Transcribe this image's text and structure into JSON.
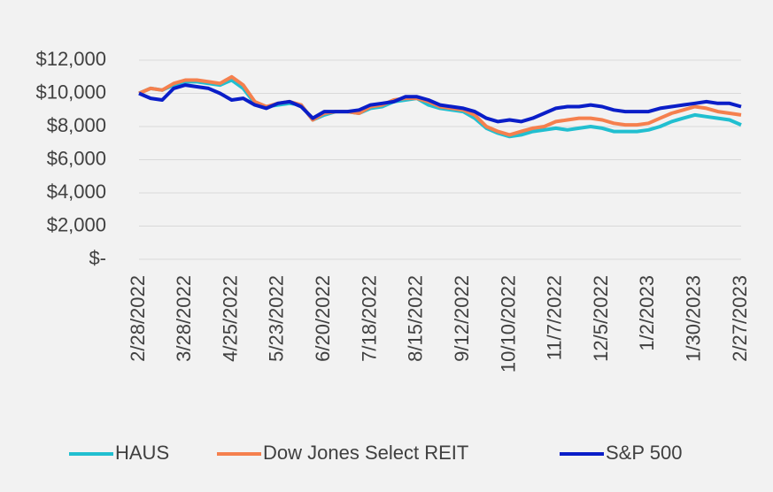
{
  "chart_data": {
    "type": "line",
    "categories": [
      "2/28/2022",
      null,
      null,
      null,
      "3/28/2022",
      null,
      null,
      null,
      "4/25/2022",
      null,
      null,
      null,
      "5/23/2022",
      null,
      null,
      null,
      "6/20/2022",
      null,
      null,
      null,
      "7/18/2022",
      null,
      null,
      null,
      "8/15/2022",
      null,
      null,
      null,
      "9/12/2022",
      null,
      null,
      null,
      "10/10/2022",
      null,
      null,
      null,
      "11/7/2022",
      null,
      null,
      null,
      "12/5/2022",
      null,
      null,
      null,
      "1/2/2023",
      null,
      null,
      null,
      "1/30/2023",
      null,
      null,
      null,
      "2/27/2023"
    ],
    "series": [
      {
        "name": "HAUS",
        "color": "#21bfd0",
        "values": [
          10000,
          10300,
          10200,
          10500,
          10700,
          10700,
          10600,
          10500,
          10800,
          10300,
          9400,
          9200,
          9300,
          9400,
          9300,
          8400,
          8700,
          8900,
          8900,
          8800,
          9100,
          9200,
          9500,
          9600,
          9700,
          9300,
          9100,
          9000,
          8900,
          8500,
          7900,
          7600,
          7400,
          7500,
          7700,
          7800,
          7900,
          7800,
          7900,
          8000,
          7900,
          7700,
          7700,
          7700,
          7800,
          8000,
          8300,
          8500,
          8700,
          8600,
          8500,
          8400,
          8100
        ]
      },
      {
        "name": "Dow Jones Select REIT",
        "color": "#f5804e",
        "values": [
          10000,
          10300,
          10200,
          10600,
          10800,
          10800,
          10700,
          10600,
          11000,
          10500,
          9500,
          9200,
          9400,
          9500,
          9300,
          8400,
          8800,
          8900,
          8900,
          8800,
          9200,
          9300,
          9600,
          9700,
          9700,
          9500,
          9200,
          9100,
          9000,
          8700,
          8000,
          7700,
          7500,
          7700,
          7900,
          8000,
          8300,
          8400,
          8500,
          8500,
          8400,
          8200,
          8100,
          8100,
          8200,
          8500,
          8800,
          9000,
          9200,
          9100,
          8900,
          8800,
          8700
        ]
      },
      {
        "name": "S&P 500",
        "color": "#0a1ec8",
        "values": [
          10000,
          9700,
          9600,
          10300,
          10500,
          10400,
          10300,
          10000,
          9600,
          9700,
          9300,
          9100,
          9400,
          9500,
          9200,
          8500,
          8900,
          8900,
          8900,
          9000,
          9300,
          9400,
          9500,
          9800,
          9800,
          9600,
          9300,
          9200,
          9100,
          8900,
          8500,
          8300,
          8400,
          8300,
          8500,
          8800,
          9100,
          9200,
          9200,
          9300,
          9200,
          9000,
          8900,
          8900,
          8900,
          9100,
          9200,
          9300,
          9400,
          9500,
          9400,
          9400,
          9200
        ]
      }
    ],
    "ylim": [
      0,
      12000
    ],
    "yticks": [
      {
        "value": 0,
        "label": "$-"
      },
      {
        "value": 2000,
        "label": "$2,000"
      },
      {
        "value": 4000,
        "label": "$4,000"
      },
      {
        "value": 6000,
        "label": "$6,000"
      },
      {
        "value": 8000,
        "label": "$8,000"
      },
      {
        "value": 10000,
        "label": "$10,000"
      },
      {
        "value": 12000,
        "label": "$12,000"
      }
    ],
    "grid": true,
    "legend": "bottom"
  }
}
